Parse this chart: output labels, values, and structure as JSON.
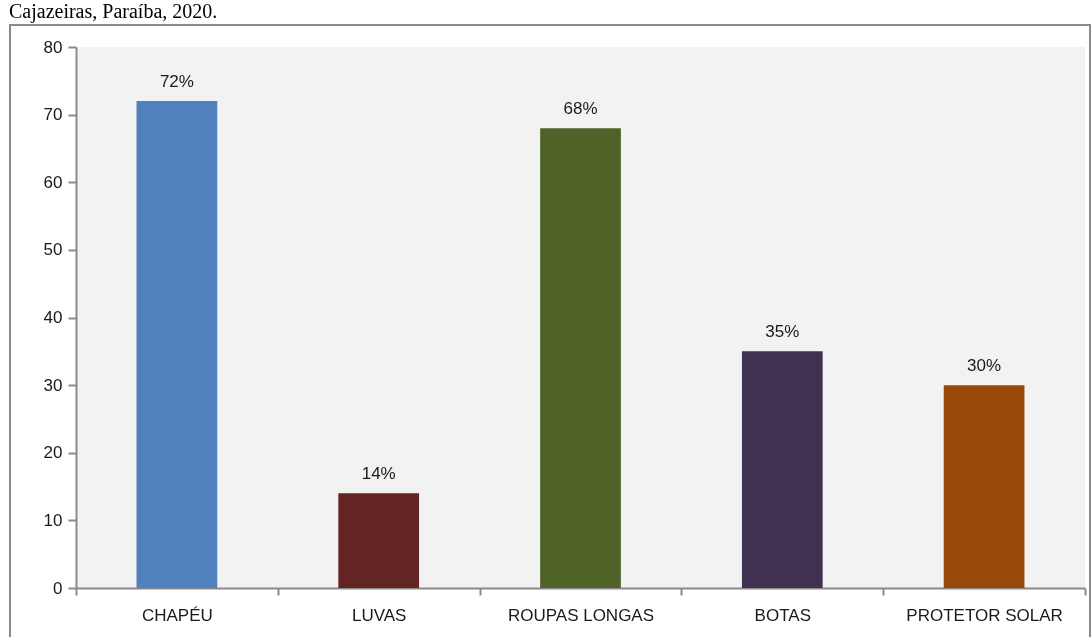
{
  "chart_data": {
    "type": "bar",
    "title": "Cajazeiras, Paraíba, 2020.",
    "categories": [
      "CHAPÉU",
      "LUVAS",
      "ROUPAS LONGAS",
      "BOTAS",
      "PROTETOR SOLAR"
    ],
    "values": [
      72,
      14,
      68,
      35,
      30
    ],
    "value_labels": [
      "72%",
      "14%",
      "68%",
      "35%",
      "30%"
    ],
    "colors": [
      "#4f81bd",
      "#632523",
      "#4f6228",
      "#403151",
      "#984807"
    ],
    "ylim": [
      0,
      80
    ],
    "yticks": [
      0,
      10,
      20,
      30,
      40,
      50,
      60,
      70,
      80
    ]
  }
}
